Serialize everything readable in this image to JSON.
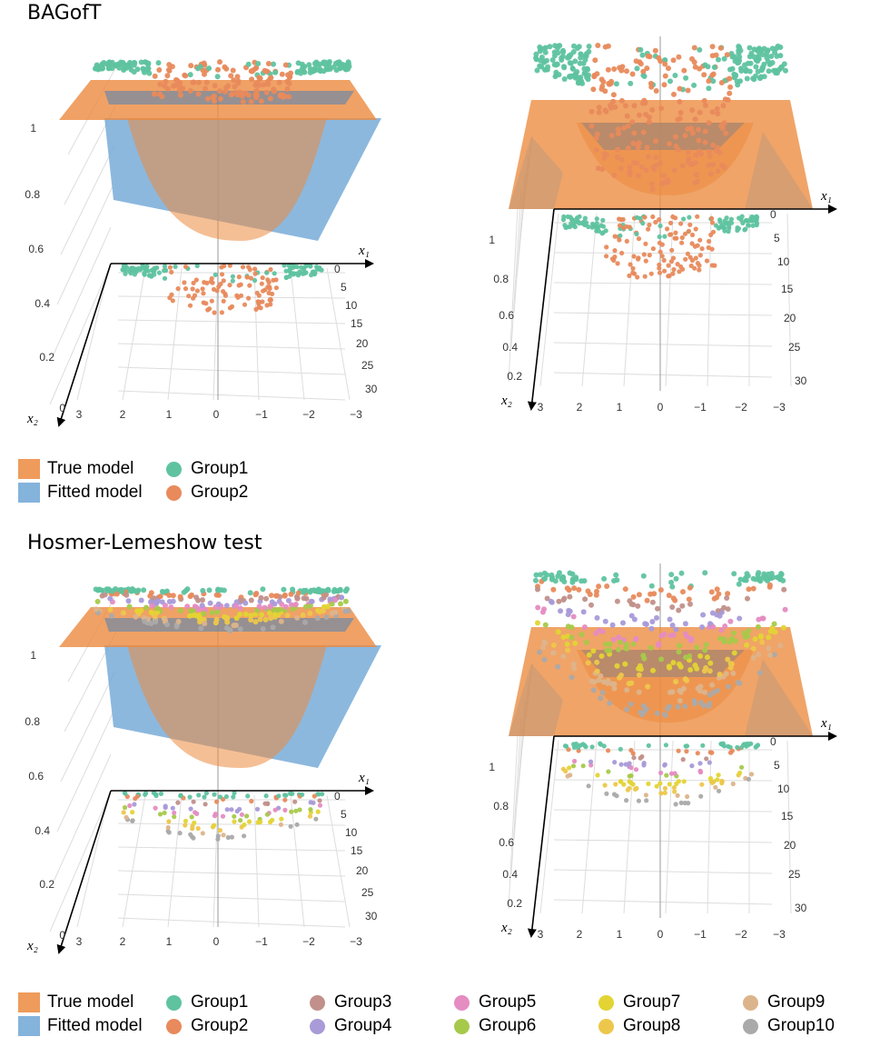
{
  "colors": {
    "true_model": "#ec8a3e",
    "fitted_model": "#6fa6d6",
    "groups": [
      "#5fc3a0",
      "#e88a5c",
      "#c1908a",
      "#a99ad8",
      "#e58cc2",
      "#a6c94b",
      "#e3d434",
      "#edc74b",
      "#dcb48c",
      "#aaaaaa"
    ]
  },
  "chart_data": [
    {
      "type": "scatter",
      "section": "BAGofT",
      "view": "perspective",
      "title": "BAGofT",
      "z_ticks": [
        "0",
        "0.2",
        "0.4",
        "0.6",
        "0.8",
        "1"
      ],
      "x1_ticks": [
        "3",
        "2",
        "1",
        "0",
        "−1",
        "−2",
        "−3"
      ],
      "x2_ticks": [
        "0",
        "5",
        "10",
        "15",
        "20",
        "25",
        "30"
      ],
      "x1_label": "x₁",
      "x2_label": "x₂",
      "surfaces": [
        "True model",
        "Fitted model"
      ],
      "groups": [
        "Group1",
        "Group2"
      ]
    },
    {
      "type": "scatter",
      "section": "BAGofT",
      "view": "top",
      "z_ticks": [
        "0.2",
        "0.4",
        "0.6",
        "0.8",
        "1"
      ],
      "x1_ticks": [
        "3",
        "2",
        "1",
        "0",
        "−1",
        "−2",
        "−3"
      ],
      "x2_ticks": [
        "0",
        "5",
        "10",
        "15",
        "20",
        "25",
        "30"
      ],
      "x1_label": "x₁",
      "x2_label": "x₂",
      "surfaces": [
        "True model",
        "Fitted model"
      ],
      "groups": [
        "Group1",
        "Group2"
      ]
    },
    {
      "type": "scatter",
      "section": "Hosmer-Lemeshow test",
      "view": "perspective",
      "title": "Hosmer-Lemeshow test",
      "z_ticks": [
        "0",
        "0.2",
        "0.4",
        "0.6",
        "0.8",
        "1"
      ],
      "x1_ticks": [
        "3",
        "2",
        "1",
        "0",
        "−1",
        "−2",
        "−3"
      ],
      "x2_ticks": [
        "0",
        "5",
        "10",
        "15",
        "20",
        "25",
        "30"
      ],
      "x1_label": "x₁",
      "x2_label": "x₂",
      "surfaces": [
        "True model",
        "Fitted model"
      ],
      "groups": [
        "Group1",
        "Group2",
        "Group3",
        "Group4",
        "Group5",
        "Group6",
        "Group7",
        "Group8",
        "Group9",
        "Group10"
      ]
    },
    {
      "type": "scatter",
      "section": "Hosmer-Lemeshow test",
      "view": "top",
      "z_ticks": [
        "0.2",
        "0.4",
        "0.6",
        "0.8",
        "1"
      ],
      "x1_ticks": [
        "3",
        "2",
        "1",
        "0",
        "−1",
        "−2",
        "−3"
      ],
      "x2_ticks": [
        "0",
        "5",
        "10",
        "15",
        "20",
        "25",
        "30"
      ],
      "x1_label": "x₁",
      "x2_label": "x₂",
      "surfaces": [
        "True model",
        "Fitted model"
      ],
      "groups": [
        "Group1",
        "Group2",
        "Group3",
        "Group4",
        "Group5",
        "Group6",
        "Group7",
        "Group8",
        "Group9",
        "Group10"
      ]
    }
  ],
  "legends": {
    "bagoft": {
      "surfaces": [
        "True model",
        "Fitted model"
      ],
      "groups": [
        "Group1",
        "Group2"
      ]
    },
    "hosmer": {
      "surfaces": [
        "True model",
        "Fitted model"
      ],
      "groups": [
        "Group1",
        "Group2",
        "Group3",
        "Group4",
        "Group5",
        "Group6",
        "Group7",
        "Group8",
        "Group9",
        "Group10"
      ]
    }
  }
}
